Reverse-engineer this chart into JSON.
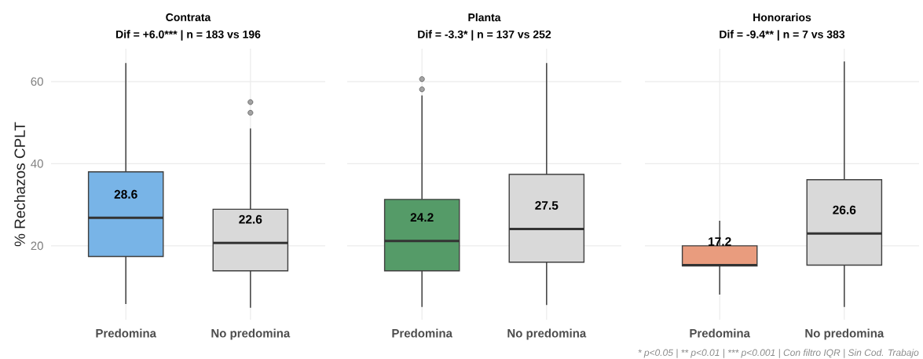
{
  "chart_data": [
    {
      "type": "box",
      "title": "Contrata",
      "subtitle": "Dif = +6.0*** | n = 183 vs 196",
      "ylabel": "% Rechazos CPLT",
      "categories": [
        "Predomina",
        "No predomina"
      ],
      "colors": [
        "#78b4e7",
        "#d9d9d9"
      ],
      "boxes": [
        {
          "low": 5.8,
          "q1": 17.4,
          "median": 26.8,
          "q3": 38.0,
          "high": 64.5
        },
        {
          "low": 4.9,
          "q1": 13.9,
          "median": 20.7,
          "q3": 28.9,
          "high": 48.6,
          "outliers": [
            52.4,
            55.0
          ]
        }
      ],
      "ylim": [
        2,
        68
      ],
      "yticks": [
        20,
        40,
        60
      ],
      "grid": true,
      "annotations": [
        "28.6",
        "22.6"
      ]
    },
    {
      "type": "box",
      "title": "Planta",
      "subtitle": "Dif = -3.3* | n = 137 vs 252",
      "categories": [
        "Predomina",
        "No predomina"
      ],
      "colors": [
        "#559b68",
        "#d9d9d9"
      ],
      "boxes": [
        {
          "low": 5.1,
          "q1": 13.9,
          "median": 21.2,
          "q3": 31.3,
          "high": 56.6,
          "outliers": [
            58.1,
            60.6
          ]
        },
        {
          "low": 5.6,
          "q1": 16.0,
          "median": 24.1,
          "q3": 37.4,
          "high": 64.5
        }
      ],
      "ylim": [
        2,
        68
      ],
      "yticks": [
        20,
        40,
        60
      ],
      "grid": true,
      "tick_labels": "x",
      "annotations": [
        "24.2",
        "27.5"
      ]
    },
    {
      "type": "box",
      "title": "Honorarios",
      "subtitle": "Dif = -9.4** | n = 7 vs 383",
      "categories": [
        "Predomina",
        "No predomina"
      ],
      "colors": [
        "#e99c7e",
        "#d9d9d9"
      ],
      "boxes": [
        {
          "low": 8.1,
          "q1": 15.1,
          "median": 15.3,
          "q3": 20.0,
          "high": 26.1
        },
        {
          "low": 5.1,
          "q1": 15.3,
          "median": 23.0,
          "q3": 36.1,
          "high": 64.9
        }
      ],
      "ylim": [
        2,
        68
      ],
      "yticks": [
        20,
        40,
        60
      ],
      "grid": true,
      "tick_labels": "x",
      "annotations": [
        "17.2",
        "26.6",
        "* p<0.05 | ** p<0.01 | *** p<0.001 | Con filtro IQR | Sin Cod. Trabajo"
      ]
    }
  ]
}
